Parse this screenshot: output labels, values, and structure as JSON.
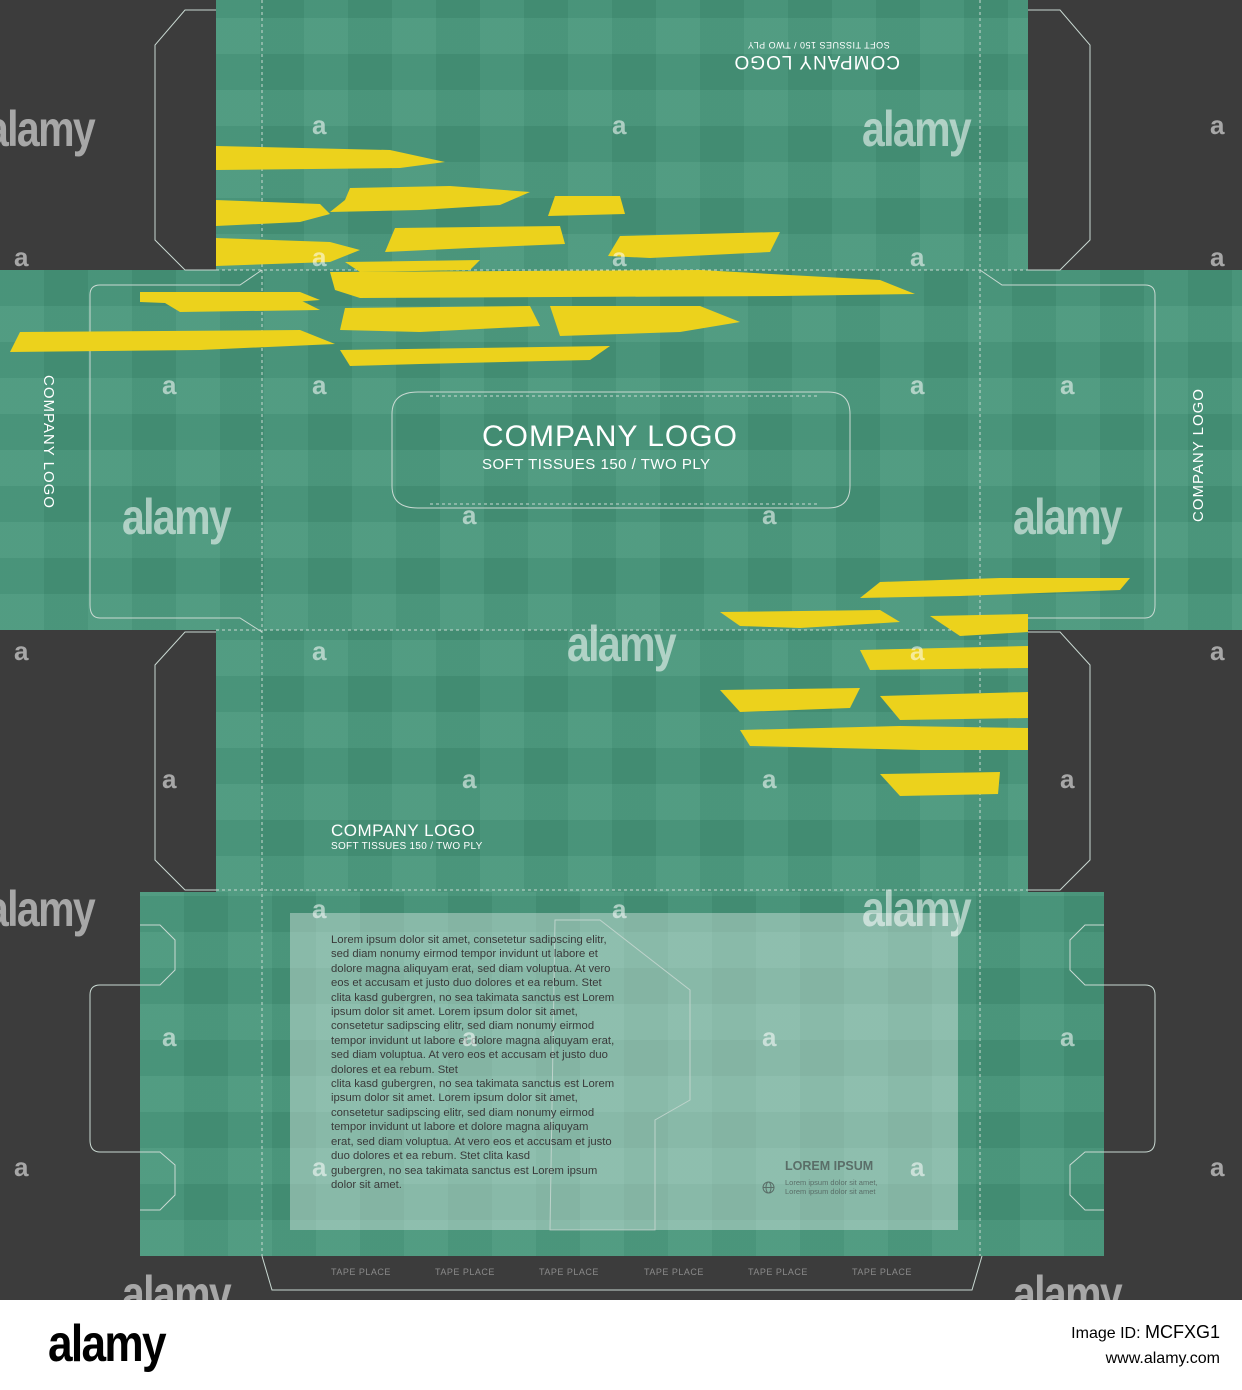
{
  "brand": {
    "name": "COMPANY LOGO",
    "subline": "SOFT TISSUES  150 / TWO PLY",
    "subline_small": "SOFT TISSUES  150 / TWO PLY"
  },
  "back_panel": {
    "heading": "LOREM IPSUM",
    "small_line_1": "Lorem ipsum dolor sit amet,",
    "small_line_2": "Lorem ipsum dolor sit amet",
    "body": "Lorem ipsum dolor sit amet, consetetur sadipscing elitr,\nsed diam nonumy eirmod tempor invidunt ut labore et\ndolore magna aliquyam erat, sed diam voluptua. At vero\neos et accusam et justo duo dolores et ea rebum. Stet\nclita kasd gubergren, no sea takimata sanctus est Lorem\nipsum dolor sit amet. Lorem ipsum dolor sit amet,\nconsetetur sadipscing elitr,  sed diam nonumy eirmod\ntempor invidunt ut labore et dolore magna aliquyam erat,\nsed diam voluptua. At vero eos et accusam et justo duo\ndolores et ea rebum. Stet\nclita kasd gubergren, no sea takimata sanctus est Lorem\nipsum dolor sit amet. Lorem ipsum dolor sit amet,\nconsetetur sadipscing elitr,  sed diam nonumy eirmod\ntempor invidunt ut labore et dolore magna aliquyam\nerat, sed diam voluptua. At vero eos et accusam et justo\nduo dolores et ea rebum. Stet clita kasd\ngubergren, no sea takimata sanctus est Lorem ipsum\ndolor sit amet."
  },
  "tape_label": "TAPE PLACE",
  "tape_labels": [
    "TAPE PLACE",
    "TAPE PLACE",
    "TAPE PLACE",
    "TAPE PLACE",
    "TAPE PLACE",
    "TAPE PLACE"
  ],
  "watermark": {
    "word": "alamy",
    "letter": "a",
    "footer_logo": "alamy",
    "image_id": "MCFXG1",
    "site": "www.alamy.com"
  },
  "colors": {
    "background": "#3c3c3c",
    "panel_green": "#46967a",
    "brush_yellow": "#ecd21c",
    "text_white": "#ffffff"
  }
}
